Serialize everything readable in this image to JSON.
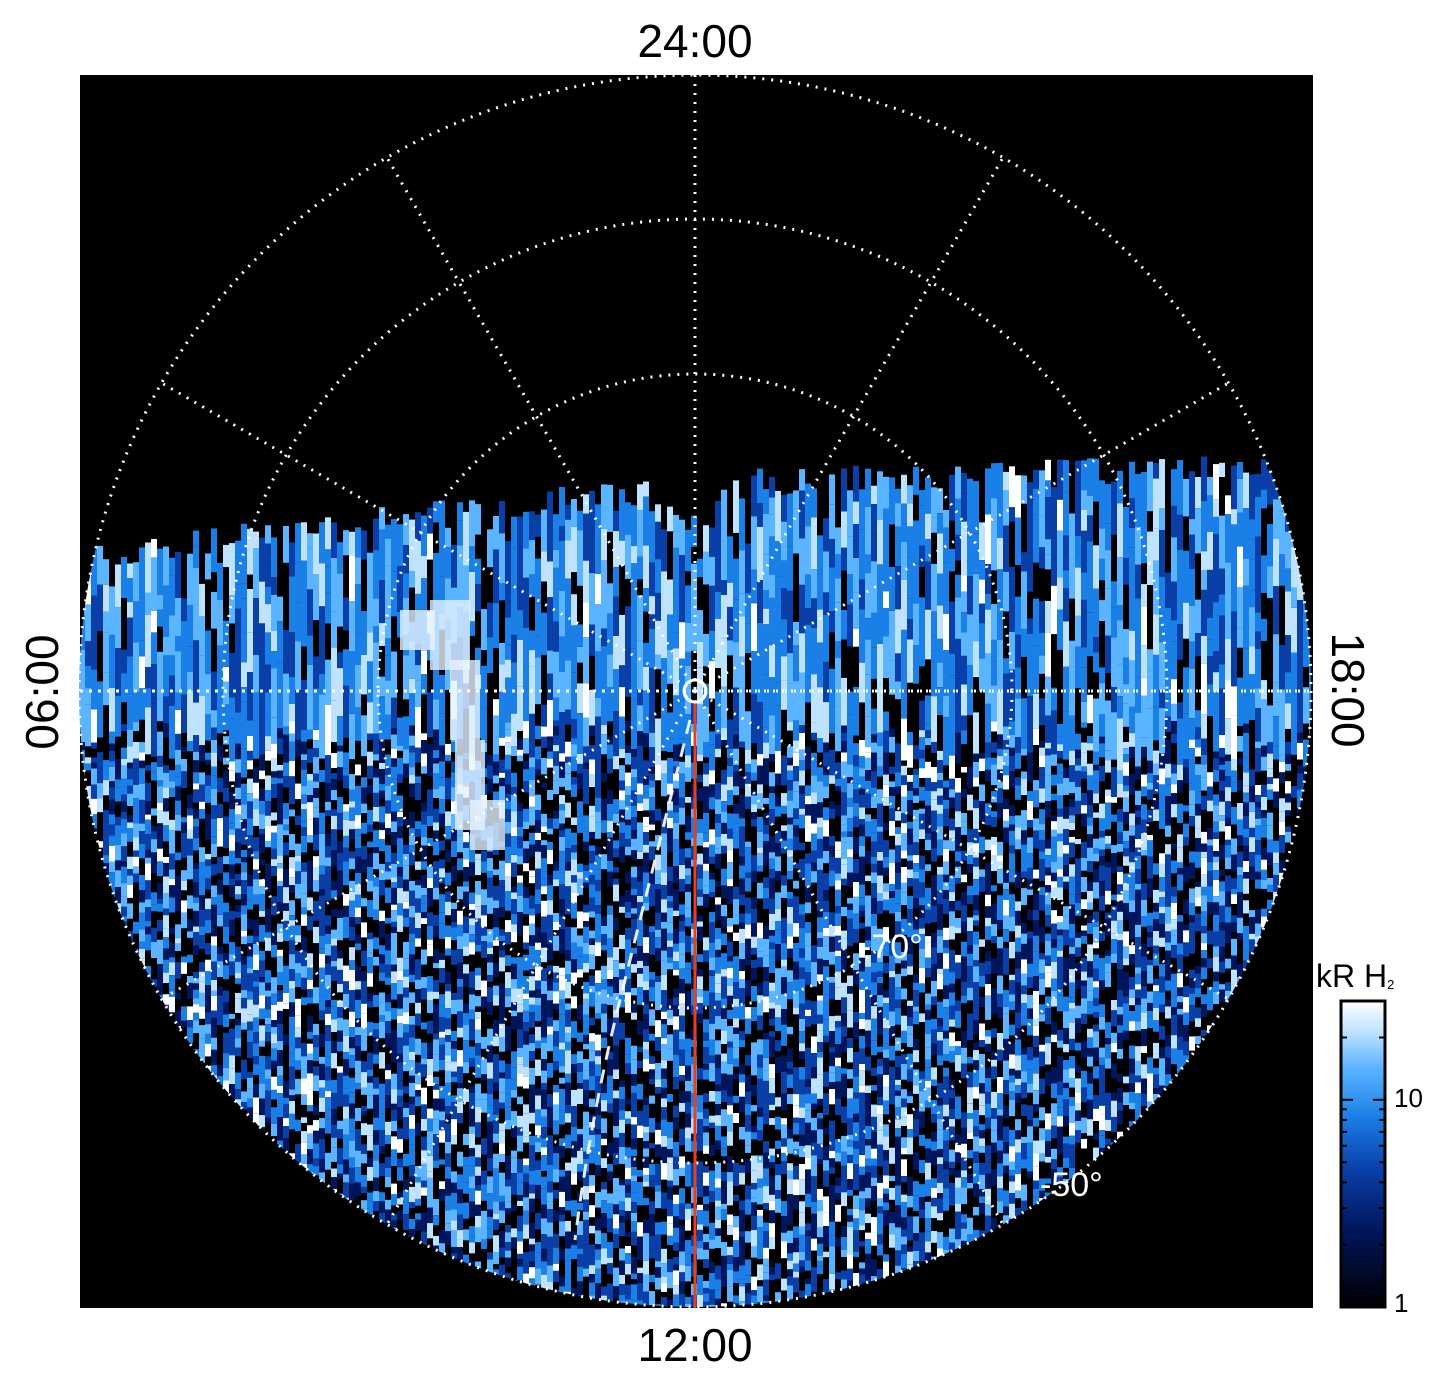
{
  "local_time_labels": {
    "top": "24:00",
    "bottom": "12:00",
    "left": "06:00",
    "right": "18:00"
  },
  "latitude_labels": [
    "-70°",
    "-50°"
  ],
  "colorbar": {
    "unit": "kR H",
    "subscript": "2",
    "ticks": [
      "10",
      "1"
    ],
    "scale": "log",
    "range": [
      1,
      30
    ]
  },
  "colors": {
    "background": "#000000",
    "grid": "#ffffff",
    "meridian_line": "#e8401a",
    "colormap": [
      "#000000",
      "#00165c",
      "#0a3fa8",
      "#1a7fe6",
      "#5ab4ff",
      "#bfe2ff",
      "#ffffff"
    ]
  }
}
